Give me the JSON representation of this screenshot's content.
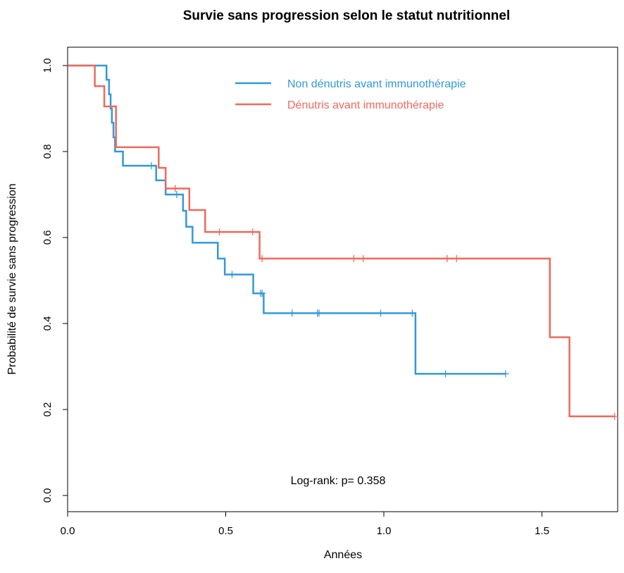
{
  "chart_data": {
    "type": "line",
    "title": "Survie sans progression selon le statut nutritionnel",
    "xlabel": "Années",
    "ylabel": "Probabilité de survie sans progression",
    "xlim": [
      0,
      1.75
    ],
    "ylim": [
      0,
      1.0
    ],
    "x_ticks": [
      "0.0",
      "0.5",
      "1.0",
      "1.5"
    ],
    "y_ticks": [
      "0.0",
      "0.2",
      "0.4",
      "0.6",
      "0.8",
      "1.0"
    ],
    "grid": false,
    "legend_position": "top-right",
    "annotation": "Log-rank: p= 0.358",
    "series": [
      {
        "name": "Non dénutris avant immunothérapie",
        "color": "#3399D6",
        "steps": [
          [
            0.0,
            1.0
          ],
          [
            0.123,
            0.967
          ],
          [
            0.131,
            0.933
          ],
          [
            0.136,
            0.9
          ],
          [
            0.14,
            0.867
          ],
          [
            0.145,
            0.833
          ],
          [
            0.15,
            0.8
          ],
          [
            0.175,
            0.767
          ],
          [
            0.28,
            0.733
          ],
          [
            0.31,
            0.7
          ],
          [
            0.365,
            0.662
          ],
          [
            0.375,
            0.625
          ],
          [
            0.395,
            0.588
          ],
          [
            0.475,
            0.551
          ],
          [
            0.497,
            0.514
          ],
          [
            0.587,
            0.47
          ],
          [
            0.62,
            0.424
          ],
          [
            1.1,
            0.283
          ]
        ],
        "end_x": 1.385,
        "censor_x": [
          0.265,
          0.345,
          0.52,
          0.61,
          0.615,
          0.71,
          0.79,
          0.795,
          0.99,
          1.09,
          1.195,
          1.385
        ]
      },
      {
        "name": "Dénutris avant immunothérapie",
        "color": "#EB6A5E",
        "steps": [
          [
            0.0,
            1.0
          ],
          [
            0.086,
            0.952
          ],
          [
            0.116,
            0.905
          ],
          [
            0.153,
            0.81
          ],
          [
            0.288,
            0.762
          ],
          [
            0.31,
            0.714
          ],
          [
            0.385,
            0.664
          ],
          [
            0.435,
            0.613
          ],
          [
            0.607,
            0.551
          ],
          [
            1.525,
            0.368
          ],
          [
            1.587,
            0.184
          ]
        ],
        "end_x": 1.73,
        "censor_x": [
          0.34,
          0.48,
          0.585,
          0.615,
          0.905,
          0.935,
          1.2,
          1.23,
          1.73
        ]
      }
    ]
  }
}
